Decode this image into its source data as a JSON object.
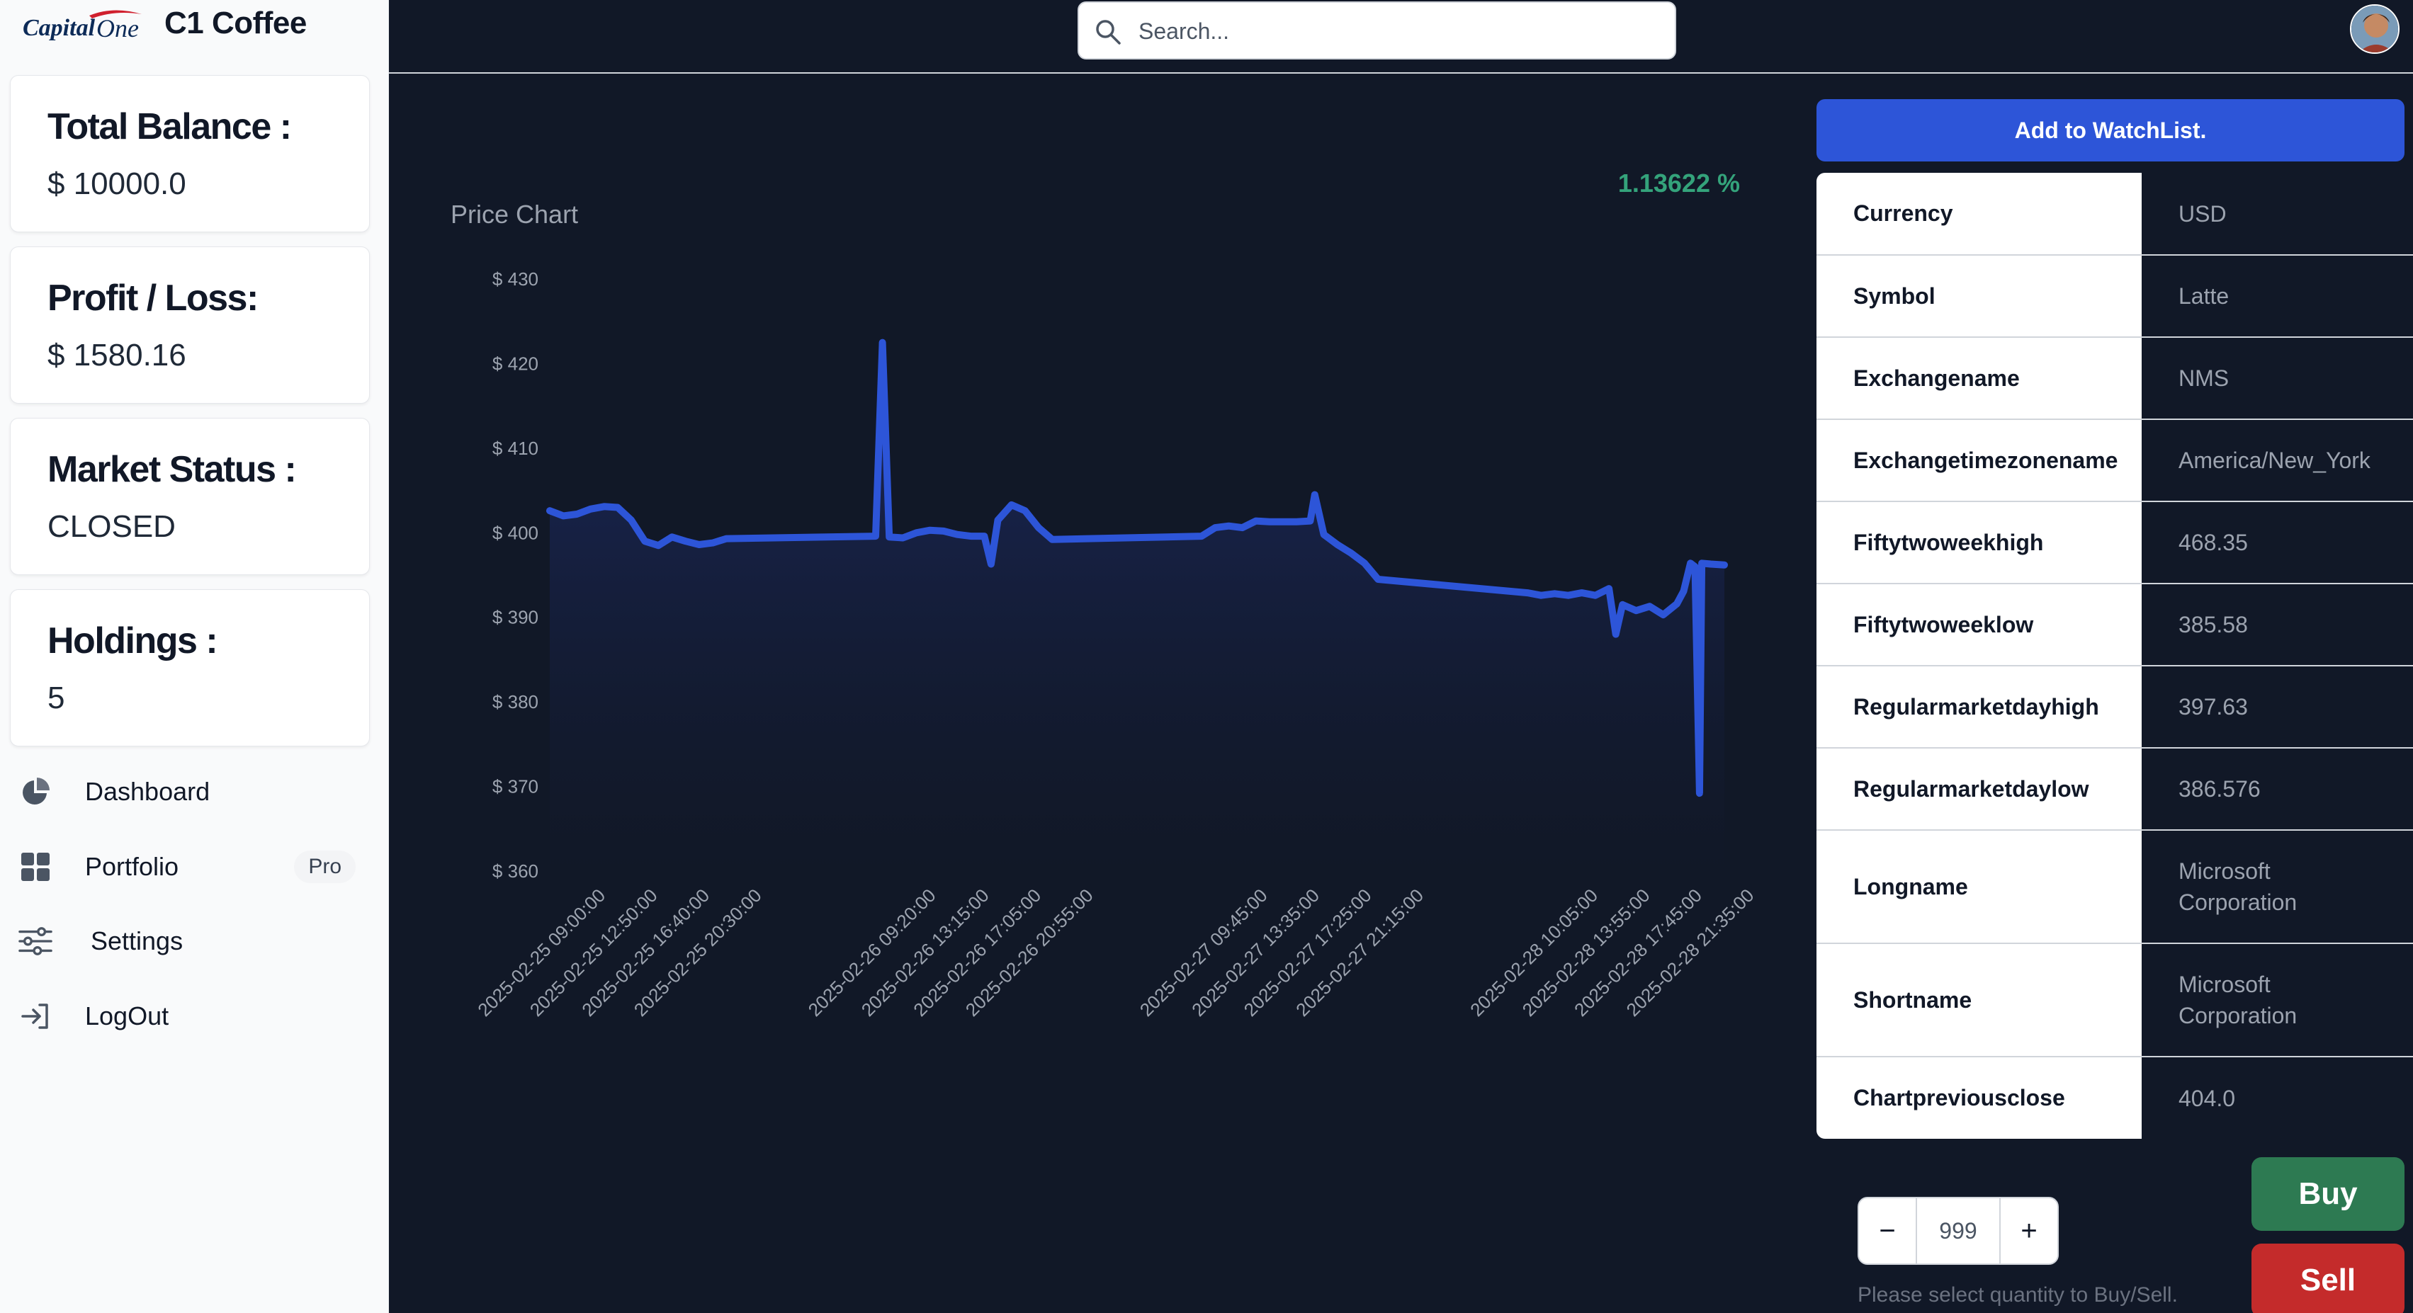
{
  "brand": {
    "logo_text": "Capital One",
    "title": "C1 Coffee"
  },
  "sidebar": {
    "cards": [
      {
        "label": "Total Balance :",
        "value": "$ 10000.0"
      },
      {
        "label": "Profit / Loss:",
        "value": "$ 1580.16"
      },
      {
        "label": "Market Status :",
        "value": "CLOSED"
      },
      {
        "label": "Holdings :",
        "value": "5"
      }
    ],
    "nav": [
      {
        "label": "Dashboard",
        "icon": "pie-chart-icon"
      },
      {
        "label": "Portfolio",
        "icon": "grid-icon",
        "badge": "Pro"
      },
      {
        "label": "Settings",
        "icon": "sliders-icon"
      },
      {
        "label": "LogOut",
        "icon": "logout-icon"
      }
    ]
  },
  "search": {
    "placeholder": "Search..."
  },
  "price_chart": {
    "percent_change": "1.13622 %"
  },
  "chart_data": {
    "type": "area",
    "title": "Price Chart",
    "xlabel": "",
    "ylabel": "",
    "ylim": [
      360,
      430
    ],
    "yticks": [
      430,
      420,
      410,
      400,
      390,
      380,
      370,
      360
    ],
    "ytick_format": "$ {v}",
    "xtick_labels": [
      "2025-02-25 09:00:00",
      "2025-02-25 12:50:00",
      "2025-02-25 16:40:00",
      "2025-02-25 20:30:00",
      "2025-02-26 09:20:00",
      "2025-02-26 13:15:00",
      "2025-02-26 17:05:00",
      "2025-02-26 20:55:00",
      "2025-02-27 09:45:00",
      "2025-02-27 13:35:00",
      "2025-02-27 17:25:00",
      "2025-02-27 21:15:00",
      "2025-02-28 10:05:00",
      "2025-02-28 13:55:00",
      "2025-02-28 17:45:00",
      "2025-02-28 21:35:00"
    ],
    "series": [
      {
        "color": "#2d55d8",
        "points": [
          [
            "2025-02-25 09:00:00",
            402.6
          ],
          [
            "2025-02-25 10:00:00",
            402.0
          ],
          [
            "2025-02-25 11:00:00",
            402.2
          ],
          [
            "2025-02-25 12:00:00",
            402.8
          ],
          [
            "2025-02-25 13:00:00",
            403.1
          ],
          [
            "2025-02-25 14:00:00",
            403.0
          ],
          [
            "2025-02-25 15:00:00",
            401.5
          ],
          [
            "2025-02-25 16:00:00",
            399.0
          ],
          [
            "2025-02-25 17:00:00",
            398.5
          ],
          [
            "2025-02-25 18:00:00",
            399.5
          ],
          [
            "2025-02-25 19:00:00",
            399.0
          ],
          [
            "2025-02-25 20:00:00",
            398.6
          ],
          [
            "2025-02-25 21:00:00",
            398.8
          ],
          [
            "2025-02-25 22:00:00",
            399.3
          ],
          [
            "2025-02-26 09:00:00",
            399.6
          ],
          [
            "2025-02-26 09:30:00",
            422.5
          ],
          [
            "2025-02-26 10:00:00",
            399.5
          ],
          [
            "2025-02-26 11:00:00",
            399.4
          ],
          [
            "2025-02-26 12:00:00",
            400.0
          ],
          [
            "2025-02-26 13:00:00",
            400.3
          ],
          [
            "2025-02-26 14:00:00",
            400.2
          ],
          [
            "2025-02-26 15:00:00",
            399.8
          ],
          [
            "2025-02-26 16:00:00",
            399.6
          ],
          [
            "2025-02-26 17:00:00",
            399.6
          ],
          [
            "2025-02-26 17:30:00",
            396.3
          ],
          [
            "2025-02-26 18:00:00",
            401.5
          ],
          [
            "2025-02-26 19:00:00",
            403.3
          ],
          [
            "2025-02-26 20:00:00",
            402.6
          ],
          [
            "2025-02-26 21:00:00",
            400.6
          ],
          [
            "2025-02-26 22:00:00",
            399.2
          ],
          [
            "2025-02-27 09:00:00",
            399.6
          ],
          [
            "2025-02-27 10:00:00",
            400.6
          ],
          [
            "2025-02-27 11:00:00",
            400.8
          ],
          [
            "2025-02-27 12:00:00",
            400.6
          ],
          [
            "2025-02-27 13:00:00",
            401.4
          ],
          [
            "2025-02-27 14:00:00",
            401.3
          ],
          [
            "2025-02-27 15:00:00",
            401.3
          ],
          [
            "2025-02-27 16:00:00",
            401.3
          ],
          [
            "2025-02-27 17:00:00",
            401.4
          ],
          [
            "2025-02-27 17:20:00",
            404.5
          ],
          [
            "2025-02-27 18:00:00",
            399.8
          ],
          [
            "2025-02-27 19:00:00",
            398.6
          ],
          [
            "2025-02-27 20:00:00",
            397.6
          ],
          [
            "2025-02-27 21:00:00",
            396.4
          ],
          [
            "2025-02-27 22:00:00",
            394.5
          ],
          [
            "2025-02-28 09:00:00",
            392.9
          ],
          [
            "2025-02-28 10:00:00",
            392.6
          ],
          [
            "2025-02-28 11:00:00",
            392.8
          ],
          [
            "2025-02-28 12:00:00",
            392.6
          ],
          [
            "2025-02-28 13:00:00",
            392.9
          ],
          [
            "2025-02-28 14:00:00",
            392.6
          ],
          [
            "2025-02-28 15:00:00",
            393.4
          ],
          [
            "2025-02-28 15:30:00",
            388.0
          ],
          [
            "2025-02-28 16:00:00",
            391.5
          ],
          [
            "2025-02-28 17:00:00",
            390.8
          ],
          [
            "2025-02-28 18:00:00",
            391.3
          ],
          [
            "2025-02-28 19:00:00",
            390.3
          ],
          [
            "2025-02-28 20:00:00",
            391.6
          ],
          [
            "2025-02-28 20:30:00",
            393.1
          ],
          [
            "2025-02-28 21:00:00",
            396.4
          ],
          [
            "2025-02-28 21:20:00",
            396.0
          ],
          [
            "2025-02-28 21:40:00",
            369.2
          ],
          [
            "2025-02-28 21:50:00",
            396.4
          ],
          [
            "2025-02-28 22:30:00",
            396.3
          ],
          [
            "2025-02-28 23:30:00",
            396.2
          ]
        ]
      }
    ]
  },
  "actions": {
    "watchlist_label": "Add to WatchList."
  },
  "info_table": [
    {
      "key": "Currency",
      "value": "USD"
    },
    {
      "key": "Symbol",
      "value": "Latte"
    },
    {
      "key": "Exchangename",
      "value": "NMS"
    },
    {
      "key": "Exchangetimezonename",
      "value": "America/New_York"
    },
    {
      "key": "Fiftytwoweekhigh",
      "value": "468.35"
    },
    {
      "key": "Fiftytwoweeklow",
      "value": "385.58"
    },
    {
      "key": "Regularmarketdayhigh",
      "value": "397.63"
    },
    {
      "key": "Regularmarketdaylow",
      "value": "386.576"
    },
    {
      "key": "Longname",
      "value": "Microsoft Corporation"
    },
    {
      "key": "Shortname",
      "value": "Microsoft Corporation"
    },
    {
      "key": "Chartpreviousclose",
      "value": "404.0"
    }
  ],
  "trade": {
    "decrement": "−",
    "increment": "+",
    "quantity": "999",
    "hint": "Please select quantity to Buy/Sell.",
    "buy_label": "Buy",
    "sell_label": "Sell"
  },
  "colors": {
    "page_bg": "#111827",
    "sidebar_bg": "#f9fafb",
    "accent_blue": "#2d55d8",
    "positive_green": "#34a37b",
    "buy_green": "#2d7a52",
    "sell_red": "#c42b2b"
  }
}
